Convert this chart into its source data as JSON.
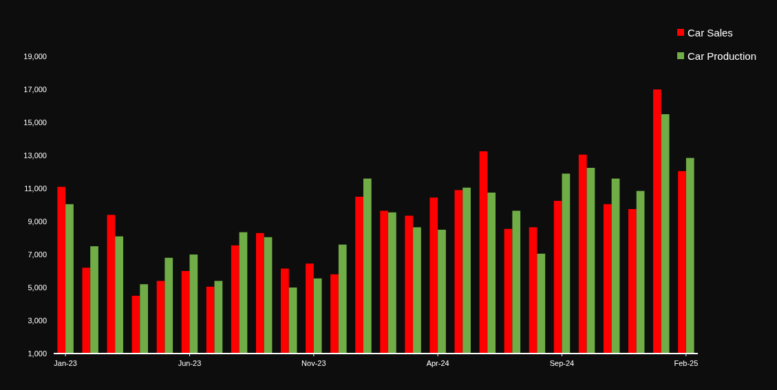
{
  "chart_data": {
    "type": "bar",
    "categories": [
      "Jan-23",
      null,
      null,
      null,
      null,
      "Jun-23",
      null,
      null,
      null,
      null,
      "Nov-23",
      null,
      null,
      null,
      null,
      "Apr-24",
      null,
      null,
      null,
      null,
      "Sep-24",
      null,
      null,
      null,
      null,
      "Feb-25"
    ],
    "series": [
      {
        "name": "Car Sales",
        "color": "#ff0000",
        "values": [
          11100,
          6200,
          9400,
          4500,
          5400,
          6000,
          5050,
          7550,
          8300,
          6150,
          6450,
          5800,
          10500,
          9650,
          9350,
          10450,
          10900,
          13250,
          8550,
          8650,
          10250,
          13050,
          10050,
          9750,
          17000,
          12050
        ]
      },
      {
        "name": "Car Production",
        "color": "#70ad47",
        "values": [
          10050,
          7500,
          8100,
          5200,
          6800,
          7000,
          5400,
          8350,
          8050,
          5000,
          5550,
          7600,
          11600,
          9550,
          8650,
          8500,
          11050,
          10750,
          9650,
          7050,
          11900,
          12250,
          11600,
          10850,
          15500,
          12850
        ]
      }
    ],
    "ylim": [
      1000,
      19000
    ],
    "yticks": [
      {
        "value": 1000,
        "label": "1,000"
      },
      {
        "value": 3000,
        "label": "3,000"
      },
      {
        "value": 5000,
        "label": "5,000"
      },
      {
        "value": 7000,
        "label": "7,000"
      },
      {
        "value": 9000,
        "label": "9,000"
      },
      {
        "value": 11000,
        "label": "11,000"
      },
      {
        "value": 13000,
        "label": "13,000"
      },
      {
        "value": 15000,
        "label": "15,000"
      },
      {
        "value": 17000,
        "label": "17,000"
      },
      {
        "value": 19000,
        "label": "19,000"
      }
    ],
    "grid": false,
    "legend": "top right"
  }
}
